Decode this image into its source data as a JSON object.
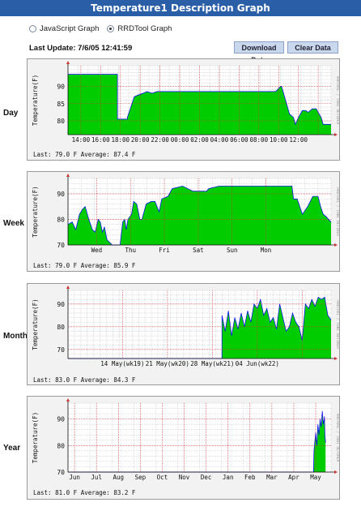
{
  "page": {
    "title": "Temperature1 Description Graph"
  },
  "view_options": [
    {
      "label": "JavaScript Graph",
      "selected": false
    },
    {
      "label": "RRDTool Graph",
      "selected": true
    }
  ],
  "last_update": "Last Update: 7/6/05 12:41:59",
  "buttons": {
    "download": "Download Data",
    "clear": "Clear Data"
  },
  "graph_common": {
    "ylabel": "Temperature(F)",
    "watermark": "RRDTOOL / TOBI OETIKER",
    "fill_color": "#00cc00",
    "line_color": "#0000ff",
    "grid_major_color": "#cc3333",
    "grid_minor_color": "#bfbfbf"
  },
  "graphs": [
    {
      "label": "Day",
      "stats": "Last: 79.0 F   Average: 87.4 F"
    },
    {
      "label": "Week",
      "stats": "Last: 79.0 F   Average: 85.9 F"
    },
    {
      "label": "Month",
      "stats": "Last: 83.0 F   Average: 84.3 F"
    },
    {
      "label": "Year",
      "stats": "Last: 81.0 F   Average: 83.2 F"
    }
  ],
  "chart_data": [
    {
      "type": "area",
      "row_label": "Day",
      "ylabel": "Temperature(F)",
      "ylim": [
        76,
        96
      ],
      "yticks": [
        80,
        85,
        90
      ],
      "xticks": [
        "14:00",
        "16:00",
        "18:00",
        "20:00",
        "22:00",
        "00:00",
        "02:00",
        "04:00",
        "06:00",
        "08:00",
        "10:00",
        "12:00"
      ],
      "x": [
        0,
        5.0,
        5.0,
        6.0,
        6.0,
        6.7,
        7.1,
        7.6,
        8.0,
        8.5,
        9.0,
        9.5,
        13.0,
        17.0,
        21.0,
        21.5,
        21.6,
        22.0,
        22.4,
        22.8,
        23.0,
        23.3,
        23.7,
        24.0,
        24.3,
        24.7,
        25.1,
        25.3,
        25.6,
        25.8,
        26.0,
        26.6
      ],
      "values": [
        93.5,
        93.5,
        80.5,
        80.5,
        81.0,
        87.0,
        87.5,
        88.0,
        88.5,
        88.0,
        88.5,
        88.5,
        88.5,
        88.5,
        88.5,
        90.0,
        90.0,
        86.0,
        82.0,
        81.0,
        79.0,
        81.0,
        83.0,
        83.0,
        82.5,
        83.5,
        83.5,
        82.5,
        81.0,
        79.0,
        79.0,
        79.0
      ],
      "grid": true,
      "legend": "none"
    },
    {
      "type": "area",
      "row_label": "Week",
      "ylabel": "Temperature(F)",
      "ylim": [
        70,
        96
      ],
      "yticks": [
        70,
        80,
        90
      ],
      "xticks": [
        "Wed",
        "Thu",
        "Fri",
        "Sat",
        "Sun",
        "Mon"
      ],
      "x": [
        0,
        0.08,
        0.15,
        0.22,
        0.28,
        0.33,
        0.4,
        0.47,
        0.52,
        0.58,
        0.62,
        0.66,
        0.7,
        0.75,
        0.8,
        0.85,
        0.95,
        1.0,
        1.05,
        1.09,
        1.12,
        1.15,
        1.22,
        1.26,
        1.32,
        1.38,
        1.42,
        1.5,
        1.6,
        1.67,
        1.75,
        1.8,
        1.92,
        2.0,
        2.2,
        2.4,
        2.5,
        2.66,
        2.7,
        2.9,
        3.1,
        3.3,
        3.6,
        3.8,
        4.0,
        4.3,
        4.33,
        4.4,
        4.5,
        4.6,
        4.7,
        4.8,
        4.85,
        4.9,
        4.96,
        5.0,
        5.05
      ],
      "values": [
        78,
        79,
        76,
        82,
        84,
        85,
        80,
        76,
        75,
        80,
        79,
        75,
        77,
        72,
        71,
        70,
        70,
        70,
        79,
        80,
        76,
        80,
        82,
        87,
        86,
        80,
        80,
        86,
        87,
        87,
        83,
        88,
        89,
        92,
        93,
        91,
        91,
        91,
        92,
        93,
        93,
        93,
        93,
        93,
        93,
        93,
        88,
        88,
        82,
        85,
        89,
        89,
        85,
        82,
        81,
        80,
        79
      ],
      "grid": true,
      "legend": "none"
    },
    {
      "type": "area",
      "row_label": "Month",
      "ylabel": "Temperature(F)",
      "ylim": [
        66,
        96
      ],
      "yticks": [
        70,
        80,
        90
      ],
      "xticks": [
        "14 May(wk19)",
        "21 May(wk20)",
        "28 May(wk21)",
        "04 Jun(wk22)"
      ],
      "x": [
        0,
        23.99,
        24.0,
        24.5,
        25.0,
        25.5,
        26.0,
        26.5,
        27.0,
        27.5,
        28.0,
        28.5,
        29.0,
        29.5,
        30.0,
        30.5,
        31.0,
        31.5,
        32.0,
        32.5,
        33.0,
        33.5,
        34.0,
        34.5,
        35.0,
        35.5,
        36.0,
        36.5,
        37.0,
        37.5,
        38.0,
        38.5,
        39.0,
        39.5,
        40.0,
        40.5,
        41.0
      ],
      "values": [
        66,
        66,
        85,
        78,
        87,
        76,
        84,
        79,
        86,
        80,
        87,
        82,
        90,
        88,
        92,
        85,
        88,
        82,
        84,
        79,
        90,
        84,
        78,
        80,
        86,
        82,
        80,
        74,
        90,
        88,
        92,
        89,
        93,
        92,
        93,
        85,
        83
      ],
      "grid": true,
      "legend": "none"
    },
    {
      "type": "area",
      "row_label": "Year",
      "ylabel": "Temperature(F)",
      "ylim": [
        70,
        96
      ],
      "yticks": [
        70,
        80,
        90
      ],
      "xticks": [
        "Jun",
        "Jul",
        "Aug",
        "Sep",
        "Oct",
        "Nov",
        "Dec",
        "Jan",
        "Feb",
        "Mar",
        "Apr",
        "May"
      ],
      "x": [
        0,
        11.2,
        11.22,
        11.3,
        11.35,
        11.4,
        11.45,
        11.5,
        11.55,
        11.6,
        11.65,
        11.7,
        11.72,
        11.75
      ],
      "values": [
        70,
        70,
        78,
        85,
        80,
        88,
        84,
        90,
        87,
        93,
        88,
        91,
        84,
        81
      ],
      "grid": true,
      "legend": "none"
    }
  ]
}
